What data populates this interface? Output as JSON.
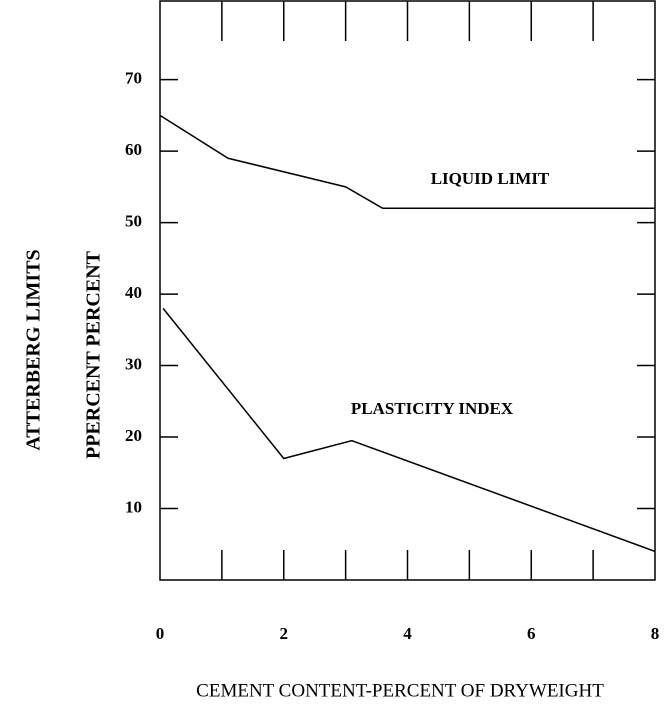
{
  "chart_data": {
    "type": "line",
    "x_label": "CEMENT CONTENT-PERCENT OF DRYWEIGHT",
    "y_label": "ATTERBERG LIMITS",
    "y_label_2": "PPERCENT PERCENT",
    "annotations": [
      "LIQUID LIMIT",
      "PLASTICITY INDEX"
    ],
    "xlim": [
      0,
      8
    ],
    "xticks": [
      0,
      2,
      4,
      6,
      8
    ],
    "x_minor_ticks": [
      1,
      3,
      5,
      7
    ],
    "ylim": [
      0,
      81
    ],
    "yticks": [
      10,
      20,
      30,
      40,
      50,
      60,
      70
    ],
    "series": [
      {
        "name": "LIQUID LIMIT",
        "color": "#000000",
        "x": [
          0,
          1.1,
          3,
          3.6,
          8
        ],
        "values": [
          65,
          59,
          55,
          52,
          52
        ]
      },
      {
        "name": "PLASTICITY INDEX",
        "color": "#000000",
        "x": [
          0.05,
          2,
          3.1,
          8
        ],
        "values": [
          38,
          17,
          19.5,
          4
        ]
      }
    ]
  }
}
